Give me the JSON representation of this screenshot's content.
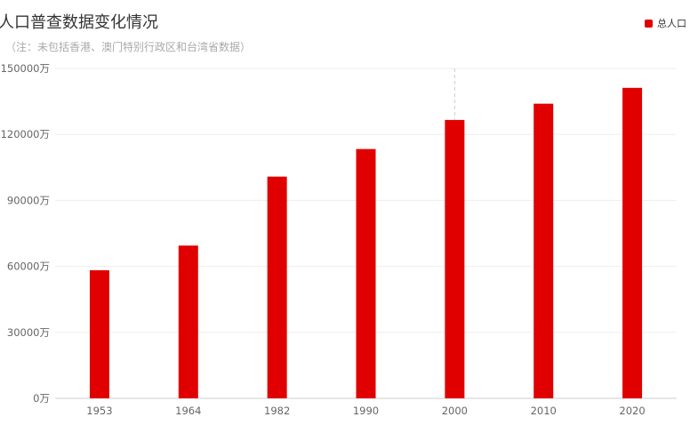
{
  "chart_data": {
    "type": "bar",
    "title": "人口普查数据变化情况",
    "subtitle": "（注：未包括香港、澳门特别行政区和台湾省数据）",
    "categories": [
      "1953",
      "1964",
      "1982",
      "1990",
      "2000",
      "2010",
      "2020"
    ],
    "series": [
      {
        "name": "总人口",
        "values": [
          58260,
          69458,
          100818,
          113368,
          126583,
          133972,
          141178
        ]
      }
    ],
    "unit": "万",
    "ylim": [
      0,
      150000
    ],
    "yticks": [
      0,
      30000,
      60000,
      90000,
      120000,
      150000
    ],
    "ytick_labels": [
      "0万",
      "30000万",
      "60000万",
      "90000万",
      "120000万",
      "150000万"
    ],
    "highlighted_category": "2000",
    "grid": true,
    "legend_position": "top-right",
    "colors": {
      "bar": "#e00000",
      "grid": "#eeeeee",
      "axis": "#cccccc",
      "pointer": "#cccccc"
    }
  }
}
